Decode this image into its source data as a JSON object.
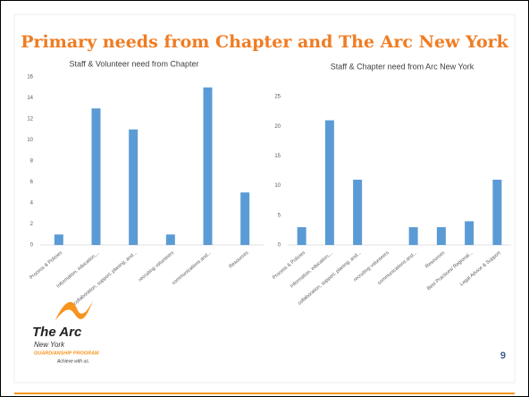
{
  "slide_title": "Primary needs from Chapter and The Arc New York",
  "page_number": "9",
  "logo": {
    "name": "The Arc",
    "region": "New York",
    "program": "GUARDIANSHIP PROGRAM",
    "tagline": "Achieve with us."
  },
  "chart_data": [
    {
      "type": "bar",
      "title": "Staff & Volunteer need from Chapter",
      "categories": [
        "Process & Policies",
        "Information, education,...",
        "collaboration, support, planing, and...",
        "recruiting volunteers",
        "communications and...",
        "Resources"
      ],
      "values": [
        1,
        13,
        11,
        1,
        15,
        5
      ],
      "color": "#5b9bd5",
      "ylim": [
        0,
        16
      ],
      "yticks": [
        0,
        2,
        4,
        6,
        8,
        10,
        12,
        14,
        16
      ],
      "grid": false
    },
    {
      "type": "bar",
      "title": "Staff & Chapter need from Arc New York",
      "categories": [
        "Process & Policies",
        "Information, education,...",
        "collaboration, support, planing, and...",
        "recruiting volunteers",
        "communications and...",
        "Resources",
        "Best Practices/ Regional...",
        "Legal Advice & Support"
      ],
      "values": [
        3,
        21,
        11,
        0,
        3,
        3,
        4,
        11
      ],
      "color": "#5b9bd5",
      "ylim": [
        0,
        25
      ],
      "yticks": [
        0,
        5,
        10,
        15,
        20,
        25
      ],
      "grid": false
    }
  ]
}
